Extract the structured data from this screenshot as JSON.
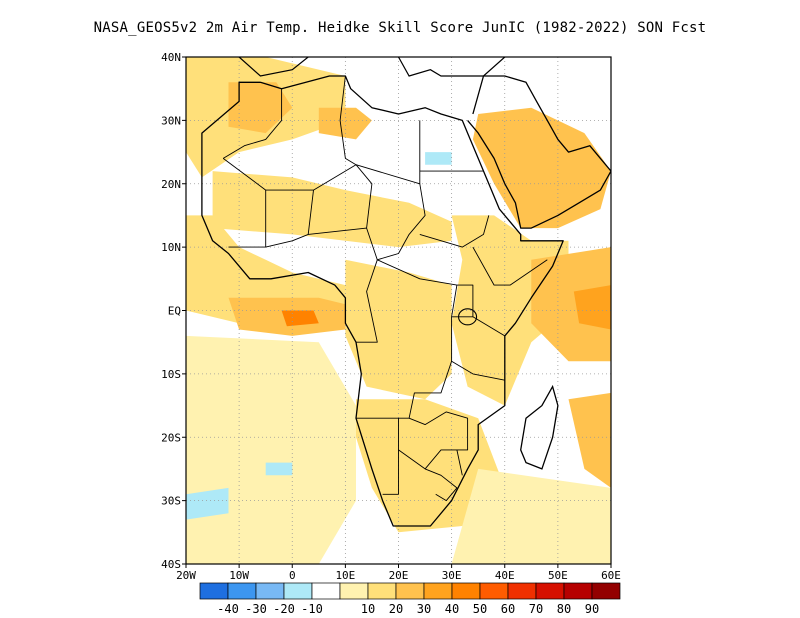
{
  "title": "NASA_GEOS5v2  2m Air Temp. Heidke Skill Score JunIC (1982-2022) SON Fcst",
  "map": {
    "lon_range": [
      -20,
      60
    ],
    "lat_range": [
      -40,
      40
    ],
    "lon_ticks": [
      {
        "value": -20,
        "label": "20W"
      },
      {
        "value": -10,
        "label": "10W"
      },
      {
        "value": 0,
        "label": "0"
      },
      {
        "value": 10,
        "label": "10E"
      },
      {
        "value": 20,
        "label": "20E"
      },
      {
        "value": 30,
        "label": "30E"
      },
      {
        "value": 40,
        "label": "40E"
      },
      {
        "value": 50,
        "label": "50E"
      },
      {
        "value": 60,
        "label": "60E"
      }
    ],
    "lat_ticks": [
      {
        "value": 40,
        "label": "40N"
      },
      {
        "value": 30,
        "label": "30N"
      },
      {
        "value": 20,
        "label": "20N"
      },
      {
        "value": 10,
        "label": "10N"
      },
      {
        "value": 0,
        "label": "EQ"
      },
      {
        "value": -10,
        "label": "10S"
      },
      {
        "value": -20,
        "label": "20S"
      },
      {
        "value": -30,
        "label": "30S"
      },
      {
        "value": -40,
        "label": "40S"
      }
    ],
    "grid": true
  },
  "colorbar": {
    "colors": [
      "#1e6fe0",
      "#3c96f0",
      "#78b9f5",
      "#aee9f7",
      "#ffffff",
      "#fff2b0",
      "#ffe07a",
      "#ffc24e",
      "#ffa31e",
      "#ff8200",
      "#ff5c00",
      "#f03000",
      "#d61000",
      "#b60000",
      "#930000"
    ],
    "labels": [
      "-40",
      "-30",
      "-20",
      "-10",
      "10",
      "20",
      "30",
      "40",
      "50",
      "60",
      "70",
      "80",
      "90"
    ]
  },
  "skill_regions": [
    {
      "name": "west-africa-coast",
      "level": 20,
      "points": [
        [
          -20,
          15
        ],
        [
          -15,
          15
        ],
        [
          -10,
          10
        ],
        [
          -5,
          8
        ],
        [
          0,
          6
        ],
        [
          10,
          4
        ],
        [
          10,
          -2
        ],
        [
          0,
          -3
        ],
        [
          -10,
          -2
        ],
        [
          -20,
          0
        ]
      ]
    },
    {
      "name": "gulf-of-guinea",
      "level": 30,
      "points": [
        [
          -12,
          2
        ],
        [
          -5,
          2
        ],
        [
          5,
          2
        ],
        [
          10,
          1
        ],
        [
          10,
          -3
        ],
        [
          0,
          -4
        ],
        [
          -10,
          -3
        ]
      ]
    },
    {
      "name": "gulf-core",
      "level": 50,
      "points": [
        [
          -2,
          0
        ],
        [
          4,
          0
        ],
        [
          5,
          -2
        ],
        [
          -1,
          -2.5
        ]
      ]
    },
    {
      "name": "northwest-africa",
      "level": 20,
      "points": [
        [
          -20,
          40
        ],
        [
          -5,
          40
        ],
        [
          10,
          37
        ],
        [
          10,
          30
        ],
        [
          0,
          27
        ],
        [
          -10,
          25
        ],
        [
          -17,
          21
        ],
        [
          -20,
          25
        ]
      ]
    },
    {
      "name": "morocco",
      "level": 30,
      "points": [
        [
          -12,
          36
        ],
        [
          -3,
          36
        ],
        [
          0,
          32
        ],
        [
          -5,
          28
        ],
        [
          -12,
          29
        ]
      ]
    },
    {
      "name": "libya",
      "level": 30,
      "points": [
        [
          5,
          32
        ],
        [
          12,
          32
        ],
        [
          15,
          30
        ],
        [
          12,
          27
        ],
        [
          5,
          28
        ]
      ]
    },
    {
      "name": "sahel",
      "level": 20,
      "points": [
        [
          -15,
          22
        ],
        [
          0,
          21
        ],
        [
          10,
          19
        ],
        [
          22,
          17
        ],
        [
          30,
          14
        ],
        [
          30,
          11
        ],
        [
          20,
          10
        ],
        [
          10,
          11
        ],
        [
          0,
          12
        ],
        [
          -15,
          13
        ]
      ]
    },
    {
      "name": "central-africa",
      "level": 20,
      "points": [
        [
          10,
          8
        ],
        [
          22,
          6
        ],
        [
          30,
          4
        ],
        [
          30,
          -10
        ],
        [
          25,
          -14
        ],
        [
          14,
          -12
        ],
        [
          10,
          -4
        ]
      ]
    },
    {
      "name": "east-africa",
      "level": 20,
      "points": [
        [
          30,
          15
        ],
        [
          38,
          15
        ],
        [
          45,
          11
        ],
        [
          52,
          11
        ],
        [
          52,
          0
        ],
        [
          45,
          -5
        ],
        [
          40,
          -15
        ],
        [
          33,
          -12
        ],
        [
          30,
          -2
        ],
        [
          32,
          8
        ]
      ]
    },
    {
      "name": "arabia",
      "level": 30,
      "points": [
        [
          35,
          31
        ],
        [
          45,
          32
        ],
        [
          55,
          28
        ],
        [
          60,
          22
        ],
        [
          58,
          16
        ],
        [
          50,
          13
        ],
        [
          43,
          13
        ],
        [
          38,
          20
        ],
        [
          34,
          27
        ]
      ]
    },
    {
      "name": "indian-ocean",
      "level": 30,
      "points": [
        [
          45,
          8
        ],
        [
          60,
          10
        ],
        [
          60,
          -8
        ],
        [
          52,
          -8
        ],
        [
          45,
          -2
        ]
      ]
    },
    {
      "name": "indian-ocean-core",
      "level": 40,
      "points": [
        [
          53,
          3
        ],
        [
          60,
          4
        ],
        [
          60,
          -3
        ],
        [
          54,
          -2
        ]
      ]
    },
    {
      "name": "madagascar-sea",
      "level": 30,
      "points": [
        [
          52,
          -14
        ],
        [
          60,
          -13
        ],
        [
          60,
          -28
        ],
        [
          55,
          -25
        ]
      ]
    },
    {
      "name": "southern-africa",
      "level": 20,
      "points": [
        [
          12,
          -14
        ],
        [
          25,
          -14
        ],
        [
          35,
          -17
        ],
        [
          40,
          -28
        ],
        [
          32,
          -34
        ],
        [
          20,
          -35
        ],
        [
          15,
          -28
        ],
        [
          12,
          -20
        ]
      ]
    },
    {
      "name": "south-atlantic",
      "level": 10,
      "points": [
        [
          -20,
          -4
        ],
        [
          5,
          -5
        ],
        [
          12,
          -15
        ],
        [
          12,
          -30
        ],
        [
          5,
          -40
        ],
        [
          -20,
          -40
        ]
      ]
    },
    {
      "name": "south-indian",
      "level": 10,
      "points": [
        [
          35,
          -25
        ],
        [
          60,
          -28
        ],
        [
          60,
          -40
        ],
        [
          30,
          -40
        ]
      ]
    },
    {
      "name": "sahara-negative",
      "level": -10,
      "points": [
        [
          25,
          25
        ],
        [
          30,
          25
        ],
        [
          30,
          23
        ],
        [
          25,
          23
        ]
      ]
    },
    {
      "name": "atlantic-negative",
      "level": -10,
      "points": [
        [
          -20,
          -29
        ],
        [
          -12,
          -28
        ],
        [
          -12,
          -32
        ],
        [
          -20,
          -33
        ]
      ]
    },
    {
      "name": "atlantic-negative-2",
      "level": -10,
      "points": [
        [
          -5,
          -24
        ],
        [
          0,
          -24
        ],
        [
          0,
          -26
        ],
        [
          -5,
          -26
        ]
      ]
    }
  ],
  "coastline": [
    [
      -6,
      36
    ],
    [
      -10,
      36
    ],
    [
      -10,
      33
    ],
    [
      -17,
      28
    ],
    [
      -17,
      21
    ],
    [
      -17,
      15
    ],
    [
      -15,
      11
    ],
    [
      -12,
      9
    ],
    [
      -8,
      5
    ],
    [
      -4,
      5
    ],
    [
      3,
      6
    ],
    [
      8,
      4
    ],
    [
      10,
      2
    ],
    [
      10,
      -2
    ],
    [
      12,
      -5
    ],
    [
      13,
      -10
    ],
    [
      12,
      -17
    ],
    [
      15,
      -25
    ],
    [
      17,
      -30
    ],
    [
      19,
      -34
    ],
    [
      22,
      -34
    ],
    [
      26,
      -34
    ],
    [
      30,
      -30
    ],
    [
      33,
      -25
    ],
    [
      35,
      -22
    ],
    [
      35,
      -18
    ],
    [
      40,
      -15
    ],
    [
      40,
      -10
    ],
    [
      40,
      -4
    ],
    [
      42,
      -2
    ],
    [
      45,
      2
    ],
    [
      49,
      7
    ],
    [
      51,
      11
    ],
    [
      43,
      11
    ],
    [
      43,
      12
    ],
    [
      39,
      16
    ],
    [
      37,
      20
    ],
    [
      35,
      24
    ],
    [
      33,
      28
    ],
    [
      32,
      30
    ],
    [
      28,
      31
    ],
    [
      25,
      32
    ],
    [
      20,
      31
    ],
    [
      15,
      32
    ],
    [
      11,
      35
    ],
    [
      10,
      37
    ],
    [
      7,
      37
    ],
    [
      -2,
      35
    ],
    [
      -6,
      36
    ]
  ],
  "arabia_coast": [
    [
      33,
      30
    ],
    [
      35,
      28
    ],
    [
      38,
      24
    ],
    [
      40,
      20
    ],
    [
      42,
      17
    ],
    [
      43,
      13
    ],
    [
      45,
      13
    ],
    [
      50,
      15
    ],
    [
      54,
      17
    ],
    [
      58,
      19
    ],
    [
      60,
      22
    ],
    [
      58,
      24
    ],
    [
      56,
      26
    ],
    [
      52,
      25
    ],
    [
      50,
      27
    ],
    [
      48,
      30
    ],
    [
      46,
      33
    ],
    [
      44,
      36
    ],
    [
      40,
      37
    ],
    [
      36,
      37
    ],
    [
      35,
      34
    ],
    [
      34,
      31
    ]
  ],
  "madagascar": [
    [
      49,
      -12
    ],
    [
      50,
      -15
    ],
    [
      49,
      -20
    ],
    [
      47,
      -25
    ],
    [
      44,
      -24
    ],
    [
      43,
      -22
    ],
    [
      44,
      -17
    ],
    [
      47,
      -15
    ]
  ],
  "borders": [
    [
      [
        -2,
        35
      ],
      [
        -2,
        30
      ],
      [
        -5,
        27
      ],
      [
        -9,
        26
      ],
      [
        -13,
        24
      ]
    ],
    [
      [
        10,
        37
      ],
      [
        9,
        30
      ],
      [
        10,
        24
      ],
      [
        12,
        23
      ]
    ],
    [
      [
        -13,
        24
      ],
      [
        -5,
        19
      ],
      [
        4,
        19
      ],
      [
        12,
        23
      ]
    ],
    [
      [
        12,
        23
      ],
      [
        24,
        20
      ],
      [
        24,
        30
      ]
    ],
    [
      [
        24,
        20
      ],
      [
        25,
        15
      ],
      [
        22,
        12
      ],
      [
        20,
        9
      ],
      [
        16,
        8
      ]
    ],
    [
      [
        -5,
        19
      ],
      [
        -5,
        10
      ],
      [
        -12,
        10
      ]
    ],
    [
      [
        4,
        19
      ],
      [
        3,
        12
      ],
      [
        0,
        11
      ],
      [
        -5,
        10
      ]
    ],
    [
      [
        3,
        12
      ],
      [
        14,
        13
      ],
      [
        16,
        8
      ]
    ],
    [
      [
        14,
        13
      ],
      [
        15,
        20
      ],
      [
        12,
        23
      ]
    ],
    [
      [
        24,
        22
      ],
      [
        36,
        22
      ]
    ],
    [
      [
        24,
        12
      ],
      [
        32,
        10
      ],
      [
        36,
        12
      ],
      [
        37,
        15
      ]
    ],
    [
      [
        34,
        10
      ],
      [
        38,
        4
      ],
      [
        41,
        4
      ],
      [
        48,
        8
      ]
    ],
    [
      [
        16,
        8
      ],
      [
        14,
        3
      ],
      [
        16,
        -5
      ],
      [
        12,
        -5
      ]
    ],
    [
      [
        16,
        8
      ],
      [
        24,
        5
      ],
      [
        31,
        4
      ]
    ],
    [
      [
        31,
        4
      ],
      [
        30,
        -1
      ],
      [
        30,
        -8
      ],
      [
        28,
        -13
      ],
      [
        23,
        -13
      ],
      [
        22,
        -17
      ],
      [
        12,
        -17
      ]
    ],
    [
      [
        31,
        4
      ],
      [
        34,
        4
      ],
      [
        34,
        -1
      ],
      [
        40,
        -4
      ]
    ],
    [
      [
        30,
        -1
      ],
      [
        34,
        -1
      ]
    ],
    [
      [
        30,
        -8
      ],
      [
        34,
        -10
      ],
      [
        40,
        -11
      ]
    ],
    [
      [
        22,
        -17
      ],
      [
        25,
        -18
      ],
      [
        29,
        -16
      ],
      [
        33,
        -17
      ],
      [
        33,
        -22
      ],
      [
        31,
        -22
      ]
    ],
    [
      [
        20,
        -17
      ],
      [
        20,
        -22
      ],
      [
        20,
        -29
      ],
      [
        17,
        -29
      ]
    ],
    [
      [
        20,
        -22
      ],
      [
        25,
        -25
      ],
      [
        28,
        -22
      ],
      [
        31,
        -22
      ],
      [
        32,
        -26
      ]
    ],
    [
      [
        25,
        -25
      ],
      [
        28,
        -26
      ],
      [
        31,
        -28
      ],
      [
        29,
        -30
      ],
      [
        27,
        -29
      ]
    ]
  ]
}
